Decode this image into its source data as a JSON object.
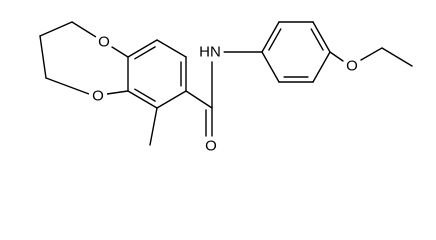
{
  "atoms": [
    {
      "label": "O"
    },
    {
      "label": "O"
    },
    {
      "label": "HN"
    },
    {
      "label": "O"
    },
    {
      "label": "O"
    }
  ]
}
